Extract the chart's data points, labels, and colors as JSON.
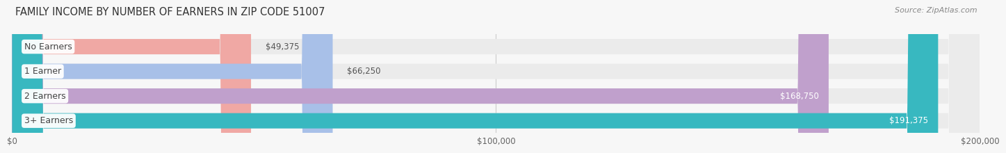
{
  "title": "FAMILY INCOME BY NUMBER OF EARNERS IN ZIP CODE 51007",
  "source": "Source: ZipAtlas.com",
  "categories": [
    "No Earners",
    "1 Earner",
    "2 Earners",
    "3+ Earners"
  ],
  "values": [
    49375,
    66250,
    168750,
    191375
  ],
  "bar_colors": [
    "#f0a8a4",
    "#a8c0e8",
    "#c0a0cc",
    "#38b8c0"
  ],
  "label_colors": [
    "#555555",
    "#555555",
    "#ffffff",
    "#ffffff"
  ],
  "value_labels": [
    "$49,375",
    "$66,250",
    "$168,750",
    "$191,375"
  ],
  "xlim": [
    0,
    200000
  ],
  "xticks": [
    0,
    100000,
    200000
  ],
  "xtick_labels": [
    "$0",
    "$100,000",
    "$200,000"
  ],
  "background_color": "#f7f7f7",
  "bar_background_color": "#ebebeb",
  "title_fontsize": 10.5,
  "source_fontsize": 8,
  "label_fontsize": 9,
  "value_fontsize": 8.5,
  "tick_fontsize": 8.5
}
